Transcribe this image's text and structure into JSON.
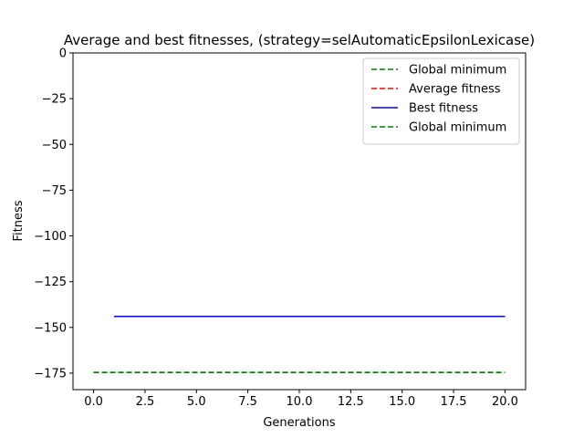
{
  "chart_data": {
    "type": "line",
    "title": "Average and best fitnesses, (strategy=selAutomaticEpsilonLexicase)",
    "xlabel": "Generations",
    "ylabel": "Fitness",
    "xlim": [
      -1,
      21
    ],
    "ylim": [
      -184,
      0
    ],
    "xticks": [
      0.0,
      2.5,
      5.0,
      7.5,
      10.0,
      12.5,
      15.0,
      17.5,
      20.0
    ],
    "xtick_labels": [
      "0.0",
      "2.5",
      "5.0",
      "7.5",
      "10.0",
      "12.5",
      "15.0",
      "17.5",
      "20.0"
    ],
    "yticks": [
      0,
      -25,
      -50,
      -75,
      -100,
      -125,
      -150,
      -175
    ],
    "ytick_labels": [
      "0",
      "−25",
      "−50",
      "−75",
      "−100",
      "−125",
      "−150",
      "−175"
    ],
    "grid": false,
    "legend_position": "top-right",
    "series": [
      {
        "name": "Global minimum",
        "color": "#008000",
        "style": "dashed",
        "x": [
          0,
          20
        ],
        "y": [
          -174.6,
          -174.6
        ]
      },
      {
        "name": "Average fitness",
        "color": "#ff0000",
        "style": "dashed",
        "x": [],
        "y": []
      },
      {
        "name": "Best fitness",
        "color": "#0000ff",
        "style": "solid",
        "x": [
          1,
          20
        ],
        "y": [
          -144,
          -144
        ]
      },
      {
        "name": "Global minimum",
        "color": "#008000",
        "style": "dashed",
        "x": [
          0,
          20
        ],
        "y": [
          -174.6,
          -174.6
        ]
      }
    ]
  }
}
